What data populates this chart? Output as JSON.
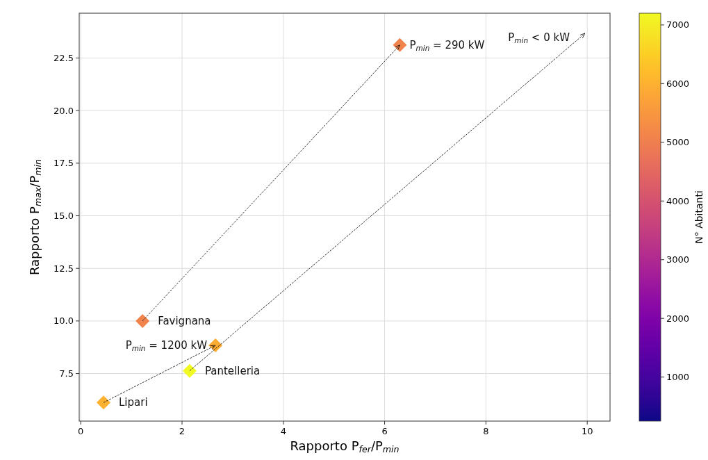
{
  "chart_data": {
    "type": "scatter",
    "xlabel": "Rapporto P$_{fer}$/P$_{min}$",
    "ylabel": "Rapporto P$_{max}$/P$_{min}$",
    "clabel": "N° Abitanti",
    "x": [
      0.45,
      1.22,
      2.15,
      2.66,
      6.3
    ],
    "values": [
      6.12,
      10.0,
      7.63,
      8.84,
      23.12
    ],
    "cvalues": [
      6000,
      5100,
      7200,
      5900,
      5100
    ],
    "marker": "diamond",
    "grid": true,
    "xlim": [
      -0.03,
      10.45
    ],
    "xticks": [
      0,
      2,
      4,
      6,
      8,
      10
    ],
    "ylim": [
      5.24,
      24.63
    ],
    "yticks": [
      {
        "value": 7.5,
        "label": "7.5"
      },
      {
        "value": 10,
        "label": "10.0"
      },
      {
        "value": 12.5,
        "label": "12.5"
      },
      {
        "value": 15,
        "label": "15.0"
      },
      {
        "value": 17.5,
        "label": "17.5"
      },
      {
        "value": 20,
        "label": "20.0"
      },
      {
        "value": 22.5,
        "label": "22.5"
      }
    ],
    "clim": [
      250,
      7200
    ],
    "cticks": [
      1000,
      2000,
      3000,
      4000,
      5000,
      6000,
      7000
    ],
    "annotations": [
      {
        "text": "Lipari",
        "x": 0.45,
        "y": 6.12
      },
      {
        "text": "Favignana",
        "x": 1.22,
        "y": 10.0
      },
      {
        "text": "Pantelleria",
        "x": 2.15,
        "y": 7.63
      },
      {
        "text": "P$_{min}$ = 1200 kW",
        "x": 2.66,
        "y": 8.84
      },
      {
        "text": "P$_{min}$ = 290 kW",
        "x": 6.3,
        "y": 23.12
      },
      "P$_{min}$ < 0 kW"
    ]
  }
}
